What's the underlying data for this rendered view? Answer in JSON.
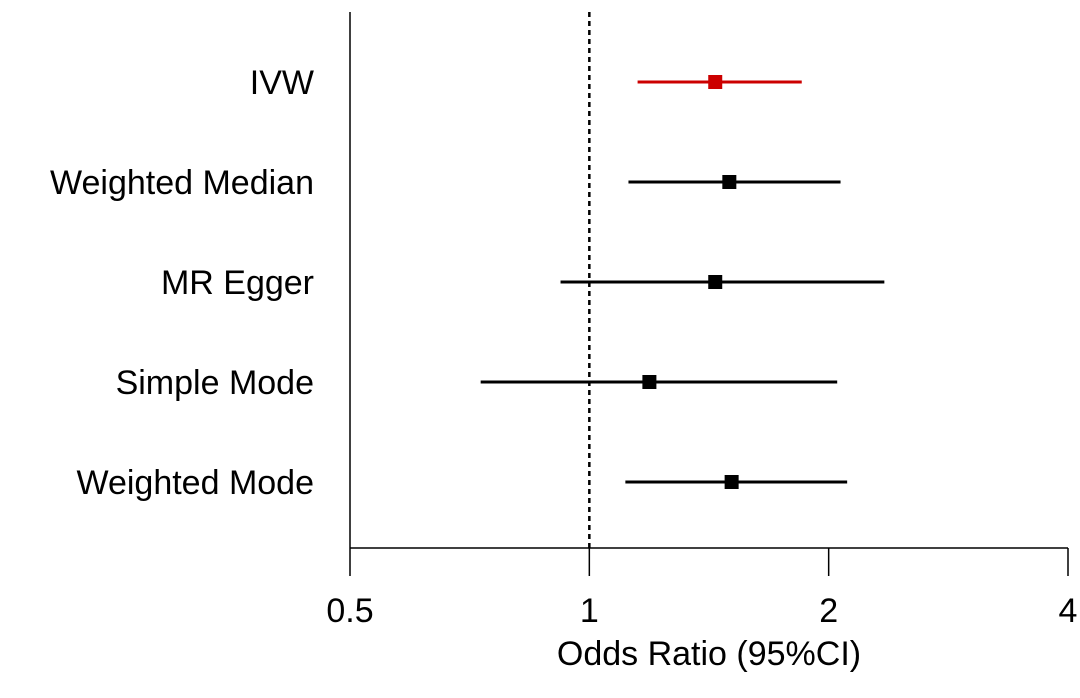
{
  "chart_data": {
    "type": "forest",
    "xlabel": "Odds Ratio (95%CI)",
    "xscale": "log",
    "xlim": [
      0.5,
      4
    ],
    "xticks": [
      0.5,
      1,
      2,
      4
    ],
    "xtick_labels": [
      "0.5",
      "1",
      "2",
      "4"
    ],
    "reference_line": 1,
    "grid": false,
    "methods": [
      {
        "label": "IVW",
        "or": 1.44,
        "ci_low": 1.15,
        "ci_high": 1.85,
        "color": "#cc0000"
      },
      {
        "label": "Weighted Median",
        "or": 1.5,
        "ci_low": 1.12,
        "ci_high": 2.07,
        "color": "#000000"
      },
      {
        "label": "MR Egger",
        "or": 1.44,
        "ci_low": 0.92,
        "ci_high": 2.35,
        "color": "#000000"
      },
      {
        "label": "Simple Mode",
        "or": 1.19,
        "ci_low": 0.73,
        "ci_high": 2.05,
        "color": "#000000"
      },
      {
        "label": "Weighted Mode",
        "or": 1.51,
        "ci_low": 1.11,
        "ci_high": 2.11,
        "color": "#000000"
      }
    ]
  }
}
